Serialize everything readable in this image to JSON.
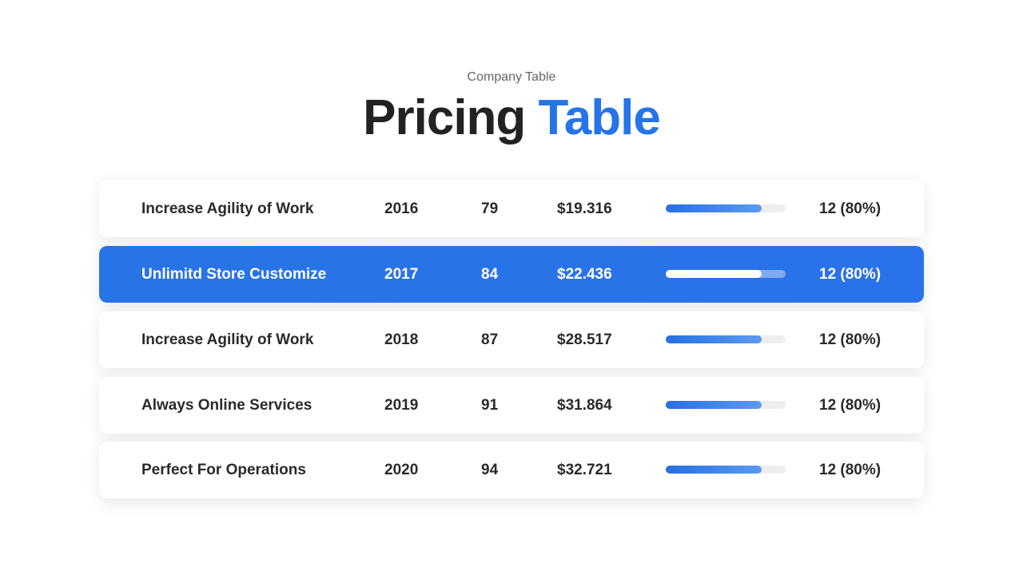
{
  "header": {
    "subtitle": "Company Table",
    "title_dark": "Pricing",
    "title_accent": "Table"
  },
  "table": {
    "rows": [
      {
        "name": "Increase Agility of Work",
        "year": "2016",
        "count": "79",
        "price": "$19.316",
        "progress": 80,
        "progress_label": "12 (80%)",
        "highlighted": false
      },
      {
        "name": "Unlimitd Store Customize",
        "year": "2017",
        "count": "84",
        "price": "$22.436",
        "progress": 80,
        "progress_label": "12 (80%)",
        "highlighted": true
      },
      {
        "name": "Increase Agility of Work",
        "year": "2018",
        "count": "87",
        "price": "$28.517",
        "progress": 80,
        "progress_label": "12 (80%)",
        "highlighted": false
      },
      {
        "name": "Always Online Services",
        "year": "2019",
        "count": "91",
        "price": "$31.864",
        "progress": 80,
        "progress_label": "12 (80%)",
        "highlighted": false
      },
      {
        "name": "Perfect For Operations",
        "year": "2020",
        "count": "94",
        "price": "$32.721",
        "progress": 80,
        "progress_label": "12 (80%)",
        "highlighted": false
      }
    ]
  }
}
